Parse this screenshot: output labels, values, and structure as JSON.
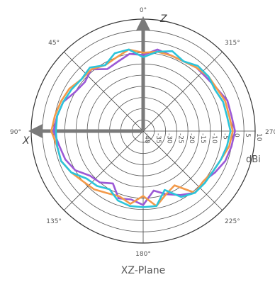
{
  "chart_data": {
    "type": "polar-line",
    "plane_label": "XZ-Plane",
    "unit_label": "dBi",
    "angle_tick_labels": [
      {
        "deg": 0,
        "label": "0°"
      },
      {
        "deg": 45,
        "label": "45°"
      },
      {
        "deg": 90,
        "label": "90°"
      },
      {
        "deg": 135,
        "label": "135°"
      },
      {
        "deg": 180,
        "label": "180°"
      },
      {
        "deg": 225,
        "label": "225°"
      },
      {
        "deg": 270,
        "label": "270"
      },
      {
        "deg": 315,
        "label": "315°"
      }
    ],
    "radial_range_dbi": [
      -40,
      10
    ],
    "radial_tick_labels": [
      "-40",
      "-35",
      "-30",
      "-25",
      "-20",
      "-15",
      "-10",
      "-5",
      "0",
      "5",
      "10"
    ],
    "axes_labels": {
      "z": "Z",
      "x": "X"
    },
    "angles_deg": [
      0,
      10,
      20,
      30,
      40,
      50,
      60,
      70,
      80,
      90,
      100,
      110,
      120,
      130,
      140,
      150,
      160,
      170,
      180,
      190,
      200,
      210,
      220,
      230,
      240,
      250,
      260,
      270,
      280,
      290,
      300,
      310,
      320,
      330,
      340,
      350
    ],
    "series": [
      {
        "color": "#9b59d6",
        "values": [
          -6,
          -5,
          -7,
          -8,
          -4,
          -6,
          -5,
          -2,
          -1,
          0,
          -2,
          -3,
          -5,
          -9,
          -10,
          -13,
          -8,
          -9,
          -7,
          -13,
          -10,
          -7,
          -4,
          -5,
          -3,
          -1,
          0,
          1,
          0,
          0,
          -2,
          -3,
          -3,
          -4,
          -4,
          -3
        ]
      },
      {
        "color": "#f39a4a",
        "values": [
          -5,
          -3,
          -5,
          -6,
          -4,
          -4,
          -2,
          -1,
          0,
          1,
          -1,
          -1,
          -3,
          -5,
          -6,
          -8,
          -9,
          -7,
          -11,
          -6,
          -10,
          -12,
          -4,
          -5,
          -4,
          -3,
          -1,
          0,
          -1,
          -1,
          -2,
          -2,
          -3,
          -4,
          -4,
          -4
        ]
      },
      {
        "color": "#2cc4da",
        "values": [
          -7,
          -3,
          -3,
          -6,
          -3,
          -4,
          -3,
          -2,
          -1,
          -1,
          -1,
          -1,
          -3,
          -7,
          -8,
          -10,
          -7,
          -6,
          -6,
          -6,
          -12,
          -6,
          -4,
          -4,
          -4,
          -3,
          -2,
          -1,
          -2,
          -2,
          -3,
          -2,
          -2,
          -4,
          -2,
          -4
        ]
      }
    ]
  }
}
